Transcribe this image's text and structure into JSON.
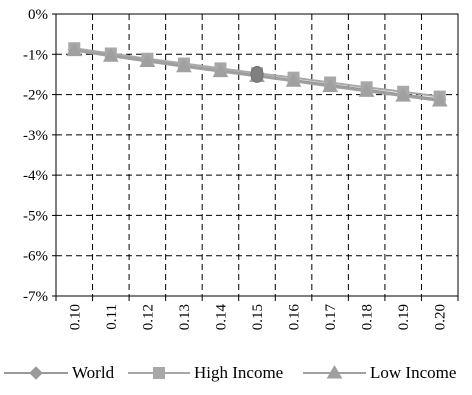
{
  "chart_data": {
    "type": "line",
    "title": "",
    "xlabel": "",
    "ylabel": "",
    "categories": [
      "0.10",
      "0.11",
      "0.12",
      "0.13",
      "0.14",
      "0.15",
      "0.16",
      "0.17",
      "0.18",
      "0.19",
      "0.20"
    ],
    "ylim": [
      -7,
      0
    ],
    "yticks": [
      "0%",
      "-1%",
      "-2%",
      "-3%",
      "-4%",
      "-5%",
      "-6%",
      "-7%"
    ],
    "grid": true,
    "legend_position": "bottom",
    "highlight": {
      "category": "0.15",
      "value": -1.5
    },
    "series": [
      {
        "name": "World",
        "marker": "diamond",
        "color": "#9a9a9a",
        "values": [
          -0.88,
          -1.02,
          -1.15,
          -1.28,
          -1.4,
          -1.52,
          -1.64,
          -1.76,
          -1.88,
          -2.0,
          -2.12
        ]
      },
      {
        "name": "High Income",
        "marker": "square",
        "color": "#a8a8a8",
        "values": [
          -0.85,
          -0.98,
          -1.11,
          -1.23,
          -1.35,
          -1.47,
          -1.58,
          -1.7,
          -1.82,
          -1.93,
          -2.05
        ]
      },
      {
        "name": "Low Income",
        "marker": "triangle",
        "color": "#a0a0a0",
        "values": [
          -0.91,
          -1.05,
          -1.18,
          -1.31,
          -1.43,
          -1.55,
          -1.67,
          -1.8,
          -1.92,
          -2.04,
          -2.16
        ]
      }
    ]
  }
}
